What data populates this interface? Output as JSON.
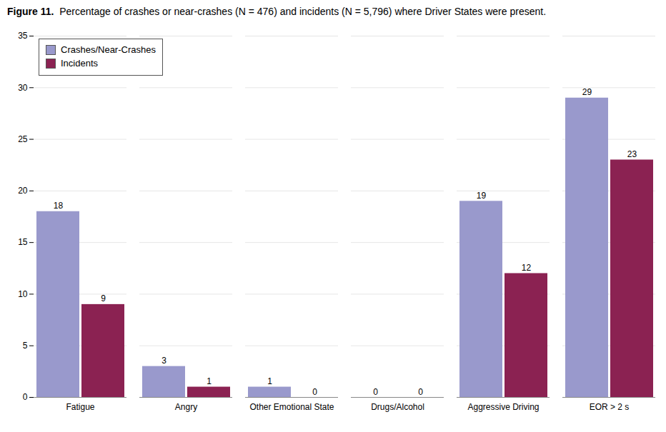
{
  "chart_data": {
    "type": "bar",
    "title": "Figure 11.  Percentage of crashes or near-crashes (N = 476) and incidents (N = 5,796) where Driver States were present.",
    "categories": [
      "Fatigue",
      "Angry",
      "Other Emotional State",
      "Drugs/Alcohol",
      "Aggressive Driving",
      "EOR > 2 s"
    ],
    "series": [
      {
        "name": "Crashes/Near-Crashes",
        "color": "#9999CC",
        "values": [
          18,
          3,
          1,
          0,
          19,
          29
        ]
      },
      {
        "name": "Incidents",
        "color": "#8B2252",
        "values": [
          9,
          1,
          0,
          0,
          12,
          23
        ]
      }
    ],
    "ylim": [
      0,
      35
    ],
    "yticks": [
      0,
      5,
      10,
      15,
      20,
      25,
      30,
      35
    ],
    "grid": true,
    "legend": "upper left",
    "data_labels": true
  }
}
